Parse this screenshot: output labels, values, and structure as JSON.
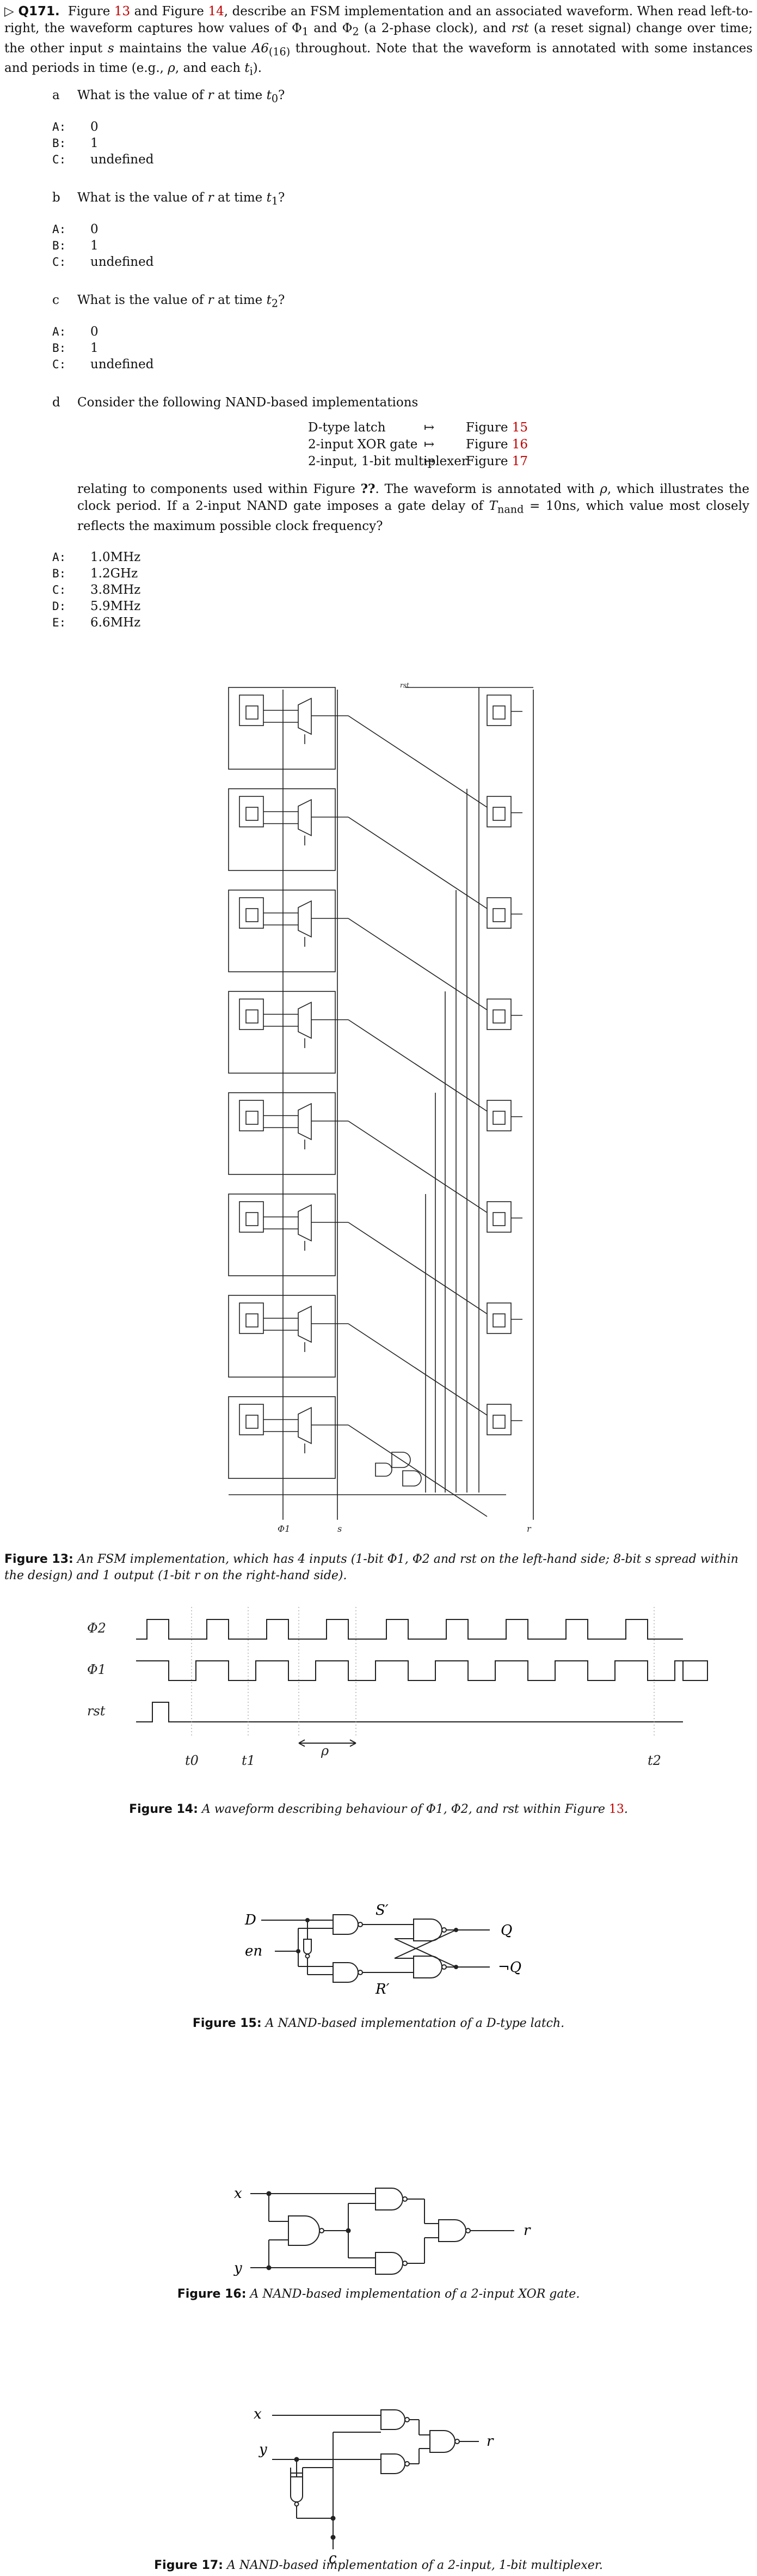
{
  "question": {
    "id": "Q171.",
    "intro": [
      "Figure ",
      "13",
      " and Figure ",
      "14",
      ", describe an FSM implementation and an associated waveform. When read left-to-right, the waveform captures how values of Φ",
      "1",
      " and Φ",
      "2",
      " (a 2-phase clock), and ",
      "rst",
      " (a reset signal) change over time; the other input ",
      "s",
      " maintains the value ",
      "A6",
      "(16)",
      " throughout. Note that the waveform is annotated with some instances and periods in time (e.g., ",
      "ρ",
      ", and each ",
      "t",
      "i",
      ")."
    ]
  },
  "parts": [
    {
      "label": "a",
      "prompt": "What is the value of ",
      "var": "r",
      "mid": " at time ",
      "t": "t",
      "sub": "0",
      "end": "?",
      "options": [
        {
          "key": "A:",
          "text": "0"
        },
        {
          "key": "B:",
          "text": "1"
        },
        {
          "key": "C:",
          "text": "undefined"
        }
      ]
    },
    {
      "label": "b",
      "prompt": "What is the value of ",
      "var": "r",
      "mid": " at time ",
      "t": "t",
      "sub": "1",
      "end": "?",
      "options": [
        {
          "key": "A:",
          "text": "0"
        },
        {
          "key": "B:",
          "text": "1"
        },
        {
          "key": "C:",
          "text": "undefined"
        }
      ]
    },
    {
      "label": "c",
      "prompt": "What is the value of ",
      "var": "r",
      "mid": " at time ",
      "t": "t",
      "sub": "2",
      "end": "?",
      "options": [
        {
          "key": "A:",
          "text": "0"
        },
        {
          "key": "B:",
          "text": "1"
        },
        {
          "key": "C:",
          "text": "undefined"
        }
      ]
    },
    {
      "label": "d",
      "prompt": "Consider the following NAND-based implementations",
      "implementations": [
        {
          "name": "D-type latch",
          "arrow": "↦",
          "fig": "Figure ",
          "num": "15"
        },
        {
          "name": "2-input XOR gate",
          "arrow": "↦",
          "fig": "Figure ",
          "num": "16"
        },
        {
          "name": "2-input, 1-bit multiplexer",
          "arrow": "↦",
          "fig": "Figure ",
          "num": "17"
        }
      ],
      "para": [
        "relating to components used within Figure ",
        "??",
        ". The waveform is annotated with ",
        "ρ",
        ", which illustrates the clock period. If a 2-input NAND gate imposes a gate delay of ",
        "T",
        "nand",
        " = 10ns, which value most closely reflects the maximum possible clock frequency?"
      ],
      "options": [
        {
          "key": "A:",
          "text": "1.0MHz"
        },
        {
          "key": "B:",
          "text": "1.2GHz"
        },
        {
          "key": "C:",
          "text": "3.8MHz"
        },
        {
          "key": "D:",
          "text": "5.9MHz"
        },
        {
          "key": "E:",
          "text": "6.6MHz"
        }
      ]
    }
  ],
  "figures": {
    "fig13": {
      "signal_labels": {
        "phi2": "Φ2",
        "phi1": "Φ1",
        "s": "s",
        "rst": "rst",
        "r": "r"
      },
      "latch_ports": {
        "d": "D",
        "en": "en",
        "q": "Q",
        "nq": "¬Q"
      },
      "mux_ports": {
        "x": "x",
        "y": "y",
        "c": "c",
        "r": "r"
      },
      "caption_label": "Figure 13:",
      "caption_text": "An FSM implementation, which has 4 inputs (1-bit Φ1, Φ2 and rst on the left-hand side; 8-bit s spread within the design) and 1 output (1-bit r on the right-hand side)."
    },
    "fig14": {
      "signals": [
        "Φ2",
        "Φ1",
        "rst"
      ],
      "time_labels": [
        "t0",
        "t1",
        "ρ",
        "t2"
      ],
      "caption_label": "Figure 14:",
      "caption_pre": "A waveform describing behaviour of Φ1, Φ2, and rst within Figure ",
      "caption_ref": "13",
      "caption_post": "."
    },
    "fig15": {
      "labels": {
        "D": "D",
        "en": "en",
        "S": "S′",
        "R": "R′",
        "Q": "Q",
        "NQ": "¬Q"
      },
      "caption_label": "Figure 15:",
      "caption_text": "A NAND-based implementation of a D-type latch."
    },
    "fig16": {
      "labels": {
        "x": "x",
        "y": "y",
        "r": "r"
      },
      "caption_label": "Figure 16:",
      "caption_text": "A NAND-based implementation of a 2-input XOR gate."
    },
    "fig17": {
      "labels": {
        "x": "x",
        "y": "y",
        "c": "c",
        "r": "r"
      },
      "caption_label": "Figure 17:",
      "caption_text": "A NAND-based implementation of a 2-input, 1-bit multiplexer."
    }
  }
}
